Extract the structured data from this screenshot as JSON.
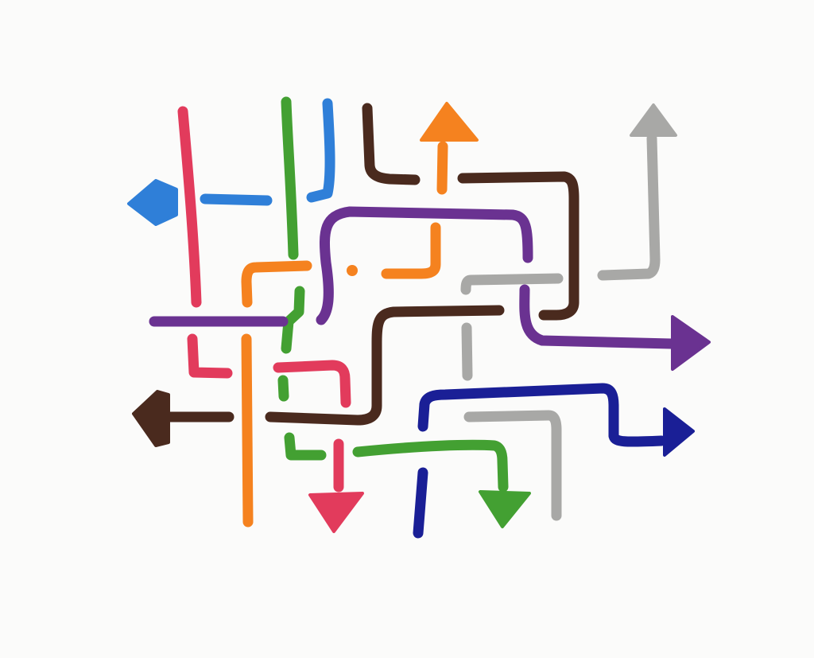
{
  "drawing": {
    "paths": [
      {
        "name": "blue-path",
        "color": "#2f7fd8",
        "has_arrow": true,
        "arrow_direction": "left"
      },
      {
        "name": "red-path",
        "color": "#e23b5c",
        "has_arrow": true,
        "arrow_direction": "down"
      },
      {
        "name": "green-path",
        "color": "#43a032",
        "has_arrow": true,
        "arrow_direction": "down"
      },
      {
        "name": "brown-path",
        "color": "#4a2a1e",
        "has_arrow": true,
        "arrow_direction": "left"
      },
      {
        "name": "orange-path",
        "color": "#f5821f",
        "has_arrow": true,
        "arrow_direction": "up"
      },
      {
        "name": "gray-path",
        "color": "#a8a8a6",
        "has_arrow": true,
        "arrow_direction": "up"
      },
      {
        "name": "purple-path",
        "color": "#6a3291",
        "has_arrow": true,
        "arrow_direction": "right"
      },
      {
        "name": "navy-path",
        "color": "#1a1f96",
        "has_arrow": true,
        "arrow_direction": "right"
      }
    ]
  }
}
